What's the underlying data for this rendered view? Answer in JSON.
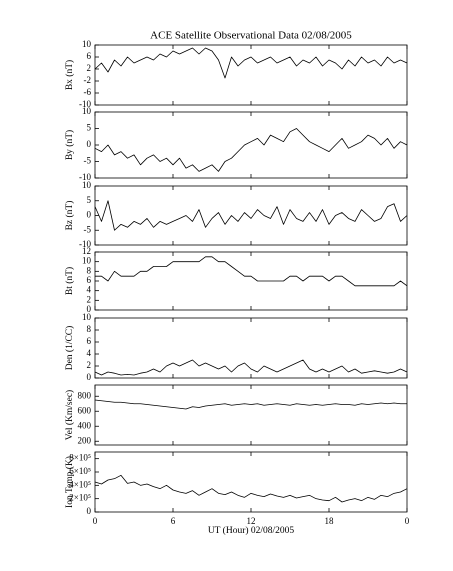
{
  "chart_data": {
    "type": "line",
    "title": "ACE Satellite Observational Data   02/08/2005",
    "xlabel": "UT (Hour)   02/08/2005",
    "x": [
      0,
      0.5,
      1,
      1.5,
      2,
      2.5,
      3,
      3.5,
      4,
      4.5,
      5,
      5.5,
      6,
      6.5,
      7,
      7.5,
      8,
      8.5,
      9,
      9.5,
      10,
      10.5,
      11,
      11.5,
      12,
      12.5,
      13,
      13.5,
      14,
      14.5,
      15,
      15.5,
      16,
      16.5,
      17,
      17.5,
      18,
      18.5,
      19,
      19.5,
      20,
      20.5,
      21,
      21.5,
      22,
      22.5,
      23,
      23.5,
      24
    ],
    "xlim": [
      0,
      24
    ],
    "xticks": [
      0,
      6,
      12,
      18,
      {
        "value": 24,
        "label": "0"
      }
    ],
    "color": "#000000",
    "panels": [
      {
        "ylabel": "Bx (nT)",
        "ylim": [
          -10,
          10
        ],
        "yticks": [
          -10,
          -6,
          -2,
          2,
          6,
          10
        ],
        "values": [
          2,
          4,
          1,
          5,
          3,
          6,
          4,
          5,
          6,
          5,
          7,
          6,
          8,
          7,
          8,
          9,
          7,
          9,
          8,
          5,
          -1,
          6,
          3,
          5,
          6,
          4,
          5,
          6,
          4,
          5,
          6,
          3,
          5,
          4,
          6,
          3,
          5,
          4,
          2,
          5,
          3,
          6,
          4,
          5,
          3,
          6,
          4,
          5,
          4
        ]
      },
      {
        "ylabel": "By (nT)",
        "ylim": [
          -10,
          10
        ],
        "yticks": [
          -10,
          -5,
          0,
          5,
          10
        ],
        "values": [
          -1,
          -2,
          0,
          -3,
          -2,
          -4,
          -3,
          -6,
          -4,
          -3,
          -5,
          -4,
          -6,
          -4,
          -7,
          -6,
          -8,
          -7,
          -6,
          -8,
          -5,
          -4,
          -2,
          0,
          1,
          2,
          0,
          3,
          2,
          1,
          4,
          5,
          3,
          1,
          0,
          -1,
          -2,
          0,
          2,
          -1,
          0,
          1,
          3,
          2,
          0,
          2,
          -1,
          1,
          0
        ]
      },
      {
        "ylabel": "Bz (nT)",
        "ylim": [
          -10,
          10
        ],
        "yticks": [
          -10,
          -5,
          0,
          5,
          10
        ],
        "values": [
          3,
          -2,
          5,
          -5,
          -3,
          -4,
          -2,
          -3,
          -1,
          -4,
          -2,
          -3,
          -2,
          -1,
          0,
          -2,
          2,
          -4,
          -1,
          1,
          -3,
          0,
          -2,
          1,
          -1,
          2,
          0,
          -1,
          3,
          -3,
          2,
          -1,
          -2,
          1,
          -2,
          2,
          -3,
          0,
          1,
          -1,
          -2,
          2,
          0,
          -2,
          -1,
          3,
          4,
          -2,
          0
        ]
      },
      {
        "ylabel": "Bt (nT)",
        "ylim": [
          0,
          12
        ],
        "yticks": [
          0,
          2,
          4,
          6,
          8,
          10,
          12
        ],
        "values": [
          7,
          7,
          6,
          8,
          7,
          7,
          7,
          8,
          8,
          9,
          9,
          9,
          10,
          10,
          10,
          10,
          10,
          11,
          11,
          10,
          10,
          9,
          8,
          7,
          7,
          6,
          6,
          6,
          6,
          6,
          7,
          7,
          6,
          7,
          7,
          7,
          6,
          7,
          7,
          6,
          5,
          5,
          5,
          5,
          5,
          5,
          5,
          6,
          5
        ]
      },
      {
        "ylabel": "Den (1/CC)",
        "ylim": [
          0,
          10
        ],
        "yticks": [
          0,
          2,
          4,
          6,
          8,
          10
        ],
        "values": [
          1,
          0.5,
          1,
          0.8,
          0.5,
          0.6,
          0.5,
          0.8,
          1,
          1.5,
          1,
          2,
          2.5,
          2,
          2.5,
          3,
          2,
          2.5,
          2,
          1.5,
          2,
          1,
          2,
          2.5,
          1.5,
          1,
          2,
          1.5,
          1,
          1.5,
          2,
          2.5,
          3,
          1.5,
          1,
          1.5,
          1,
          1.5,
          2,
          1,
          1.5,
          0.8,
          1,
          1.2,
          1,
          0.8,
          1,
          1.5,
          1
        ]
      },
      {
        "ylabel": "Vel (Km/sec)",
        "ylim": [
          150,
          950
        ],
        "yticks": [
          200,
          400,
          600,
          800
        ],
        "values": [
          750,
          740,
          730,
          720,
          720,
          710,
          700,
          700,
          690,
          680,
          670,
          660,
          650,
          640,
          630,
          660,
          650,
          670,
          680,
          690,
          700,
          680,
          690,
          700,
          690,
          700,
          680,
          690,
          700,
          690,
          680,
          700,
          690,
          680,
          690,
          680,
          690,
          700,
          690,
          690,
          680,
          700,
          690,
          700,
          710,
          700,
          710,
          700,
          700
        ]
      },
      {
        "ylabel": "Ion Temp (K)",
        "ylim": [
          0,
          900000
        ],
        "yticks": [
          0,
          {
            "value": 200000,
            "label": "2×10⁵"
          },
          {
            "value": 400000,
            "label": "4×10⁵"
          },
          {
            "value": 600000,
            "label": "6×10⁵"
          },
          {
            "value": 800000,
            "label": "8×10⁵"
          }
        ],
        "values": [
          450000,
          420000,
          480000,
          500000,
          550000,
          430000,
          450000,
          400000,
          420000,
          380000,
          350000,
          400000,
          330000,
          300000,
          280000,
          320000,
          250000,
          300000,
          350000,
          280000,
          260000,
          300000,
          250000,
          220000,
          280000,
          250000,
          230000,
          270000,
          240000,
          220000,
          250000,
          210000,
          230000,
          250000,
          200000,
          180000,
          170000,
          220000,
          150000,
          180000,
          200000,
          170000,
          220000,
          190000,
          250000,
          230000,
          280000,
          300000,
          350000
        ]
      }
    ]
  }
}
